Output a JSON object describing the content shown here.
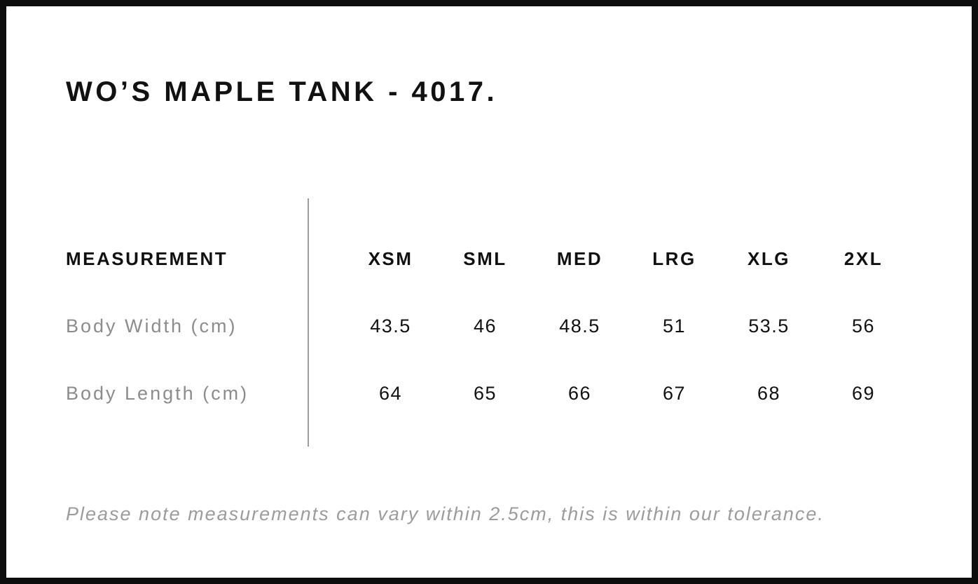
{
  "page": {
    "title": "WO’S MAPLE TANK - 4017."
  },
  "table": {
    "header_label": "MEASUREMENT",
    "columns": [
      "XSM",
      "SML",
      "MED",
      "LRG",
      "XLG",
      "2XL"
    ],
    "rows": [
      {
        "label": "Body Width (cm)",
        "values": [
          "43.5",
          "46",
          "48.5",
          "51",
          "53.5",
          "56"
        ]
      },
      {
        "label": "Body Length (cm)",
        "values": [
          "64",
          "65",
          "66",
          "67",
          "68",
          "69"
        ]
      }
    ]
  },
  "footnote": "Please note measurements can vary within 2.5cm, this is within our tolerance.",
  "chart_data": {
    "type": "table",
    "title": "WO’S MAPLE TANK - 4017.",
    "columns": [
      "MEASUREMENT",
      "XSM",
      "SML",
      "MED",
      "LRG",
      "XLG",
      "2XL"
    ],
    "rows": [
      [
        "Body Width (cm)",
        43.5,
        46,
        48.5,
        51,
        53.5,
        56
      ],
      [
        "Body Length (cm)",
        64,
        65,
        66,
        67,
        68,
        69
      ]
    ],
    "note": "Please note measurements can vary within 2.5cm, this is within our tolerance."
  },
  "colors": {
    "frame": "#0d0d0d",
    "text": "#111111",
    "row_label": "#8c8c8c",
    "footnote": "#9c9c9c",
    "divider": "#9c9c9c",
    "background": "#ffffff"
  }
}
